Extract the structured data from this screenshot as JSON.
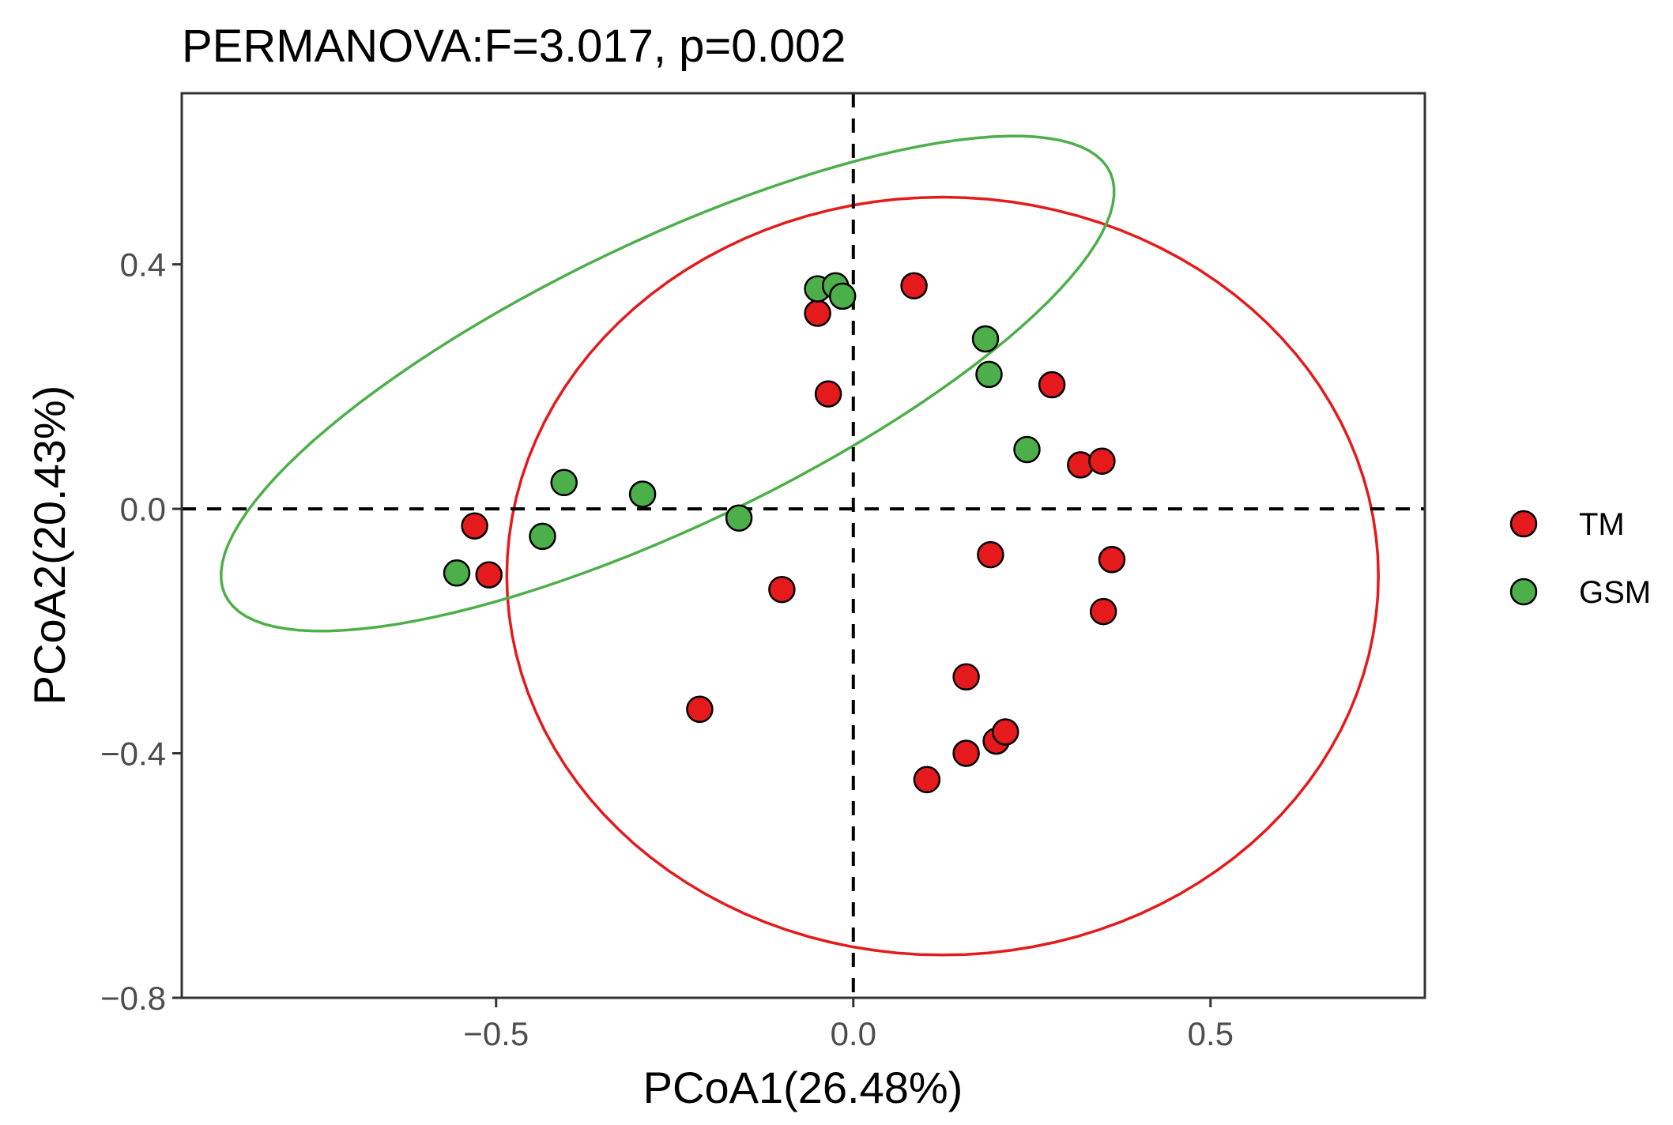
{
  "chart_data": {
    "type": "scatter",
    "title": "PERMANOVA:F=3.017, p=0.002",
    "xlabel": "PCoA1(26.48%)",
    "ylabel": "PCoA2(20.43%)",
    "xlim": [
      -0.94,
      0.8
    ],
    "ylim": [
      -0.8,
      0.68
    ],
    "xticks": [
      -0.5,
      0.0,
      0.5
    ],
    "xtick_labels": [
      "−0.5",
      "0.0",
      "0.5"
    ],
    "yticks": [
      -0.8,
      -0.4,
      0.0,
      0.4
    ],
    "ytick_labels": [
      "−0.8",
      "−0.4",
      "0.0",
      "0.4"
    ],
    "grid": false,
    "reference_lines": {
      "x": 0.0,
      "y": 0.0,
      "style": "dashed"
    },
    "legend_position": "right",
    "series": [
      {
        "name": "TM",
        "color": "#e41a1c",
        "points": [
          {
            "x": 0.085,
            "y": 0.365
          },
          {
            "x": -0.05,
            "y": 0.32
          },
          {
            "x": -0.035,
            "y": 0.188
          },
          {
            "x": 0.278,
            "y": 0.203
          },
          {
            "x": 0.318,
            "y": 0.072
          },
          {
            "x": 0.348,
            "y": 0.078
          },
          {
            "x": -0.53,
            "y": -0.028
          },
          {
            "x": -0.51,
            "y": -0.108
          },
          {
            "x": 0.192,
            "y": -0.075
          },
          {
            "x": 0.362,
            "y": -0.083
          },
          {
            "x": -0.1,
            "y": -0.132
          },
          {
            "x": 0.35,
            "y": -0.168
          },
          {
            "x": 0.158,
            "y": -0.275
          },
          {
            "x": -0.215,
            "y": -0.328
          },
          {
            "x": 0.2,
            "y": -0.38
          },
          {
            "x": 0.213,
            "y": -0.365
          },
          {
            "x": 0.158,
            "y": -0.4
          },
          {
            "x": 0.103,
            "y": -0.443
          }
        ]
      },
      {
        "name": "GSM",
        "color": "#4daf4a",
        "points": [
          {
            "x": -0.05,
            "y": 0.36
          },
          {
            "x": -0.025,
            "y": 0.365
          },
          {
            "x": -0.015,
            "y": 0.348
          },
          {
            "x": 0.185,
            "y": 0.278
          },
          {
            "x": 0.19,
            "y": 0.22
          },
          {
            "x": 0.243,
            "y": 0.097
          },
          {
            "x": -0.405,
            "y": 0.043
          },
          {
            "x": -0.295,
            "y": 0.024
          },
          {
            "x": -0.16,
            "y": -0.015
          },
          {
            "x": -0.435,
            "y": -0.045
          },
          {
            "x": -0.555,
            "y": -0.105
          }
        ]
      }
    ],
    "ellipses": [
      {
        "name": "TM",
        "color": "#e41a1c",
        "center": [
          0.125,
          -0.11
        ],
        "semi_axes": [
          0.61,
          0.62
        ],
        "angle_deg": 0
      },
      {
        "name": "GSM",
        "color": "#4daf4a",
        "center": [
          -0.26,
          0.205
        ],
        "semi_axes": [
          0.71,
          0.225
        ],
        "angle_deg": 30
      }
    ]
  }
}
